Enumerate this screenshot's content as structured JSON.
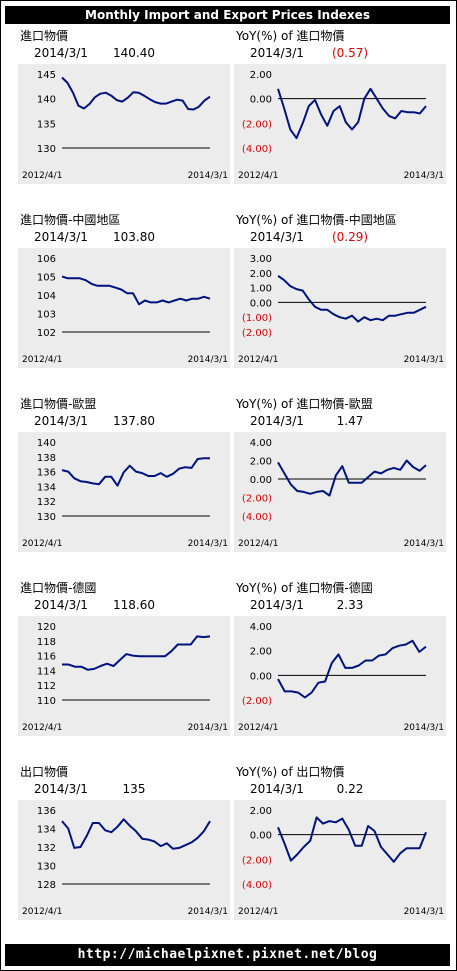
{
  "header": {
    "title": "Monthly Import and Export Prices Indexes"
  },
  "footer": {
    "url": "http://michaelpixnet.pixnet.net/blog"
  },
  "colors": {
    "line": "#00137f",
    "negative": "#e00000",
    "panel": "#ececec"
  },
  "chart_data": [
    {
      "type": "line",
      "title": "進口物價",
      "date": "2014/3/1",
      "value": "140.40",
      "value_negative": false,
      "x_start": "2012/4/1",
      "x_end": "2014/3/1",
      "ylim": [
        130,
        145
      ],
      "yticks": [
        "145",
        "140",
        "135",
        "130"
      ],
      "values": [
        144.3,
        143.2,
        141.2,
        138.6,
        138.0,
        138.9,
        140.3,
        141.0,
        141.2,
        140.6,
        139.7,
        139.4,
        140.2,
        141.3,
        141.2,
        140.6,
        139.9,
        139.3,
        139.0,
        139.0,
        139.4,
        139.8,
        139.6,
        137.9,
        137.8,
        138.4,
        139.6,
        140.4
      ]
    },
    {
      "type": "line",
      "title": "YoY(%) of 進口物價",
      "date": "2014/3/1",
      "value": "(0.57)",
      "value_negative": true,
      "x_start": "2012/4/1",
      "x_end": "2014/3/1",
      "ylim": [
        -4,
        2
      ],
      "yticks": [
        "2.00",
        "0.00",
        "(2.00)",
        "(4.00)"
      ],
      "zero_line": true,
      "values": [
        0.8,
        -0.8,
        -2.5,
        -3.2,
        -2.0,
        -0.6,
        -0.1,
        -1.3,
        -2.2,
        -1.0,
        -0.6,
        -1.9,
        -2.5,
        -1.9,
        0.0,
        0.8,
        0.0,
        -0.8,
        -1.4,
        -1.6,
        -1.0,
        -1.1,
        -1.1,
        -1.2,
        -0.6
      ]
    },
    {
      "type": "line",
      "title": "進口物價-中國地區",
      "date": "2014/3/1",
      "value": "103.80",
      "value_negative": false,
      "x_start": "2012/4/1",
      "x_end": "2014/3/1",
      "ylim": [
        102,
        106
      ],
      "yticks": [
        "106",
        "105",
        "104",
        "103",
        "102"
      ],
      "values": [
        105.0,
        104.9,
        104.9,
        104.9,
        104.8,
        104.6,
        104.5,
        104.5,
        104.5,
        104.4,
        104.3,
        104.1,
        104.1,
        103.5,
        103.7,
        103.6,
        103.6,
        103.7,
        103.6,
        103.7,
        103.8,
        103.7,
        103.8,
        103.8,
        103.9,
        103.8
      ]
    },
    {
      "type": "line",
      "title": "YoY(%) of 進口物價-中國地區",
      "date": "2014/3/1",
      "value": "(0.29)",
      "value_negative": true,
      "x_start": "2012/4/1",
      "x_end": "2014/3/1",
      "ylim": [
        -2,
        3
      ],
      "yticks": [
        "3.00",
        "2.00",
        "1.00",
        "0.00",
        "(1.00)",
        "(2.00)"
      ],
      "zero_line": true,
      "values": [
        1.8,
        1.5,
        1.1,
        0.9,
        0.8,
        0.2,
        -0.3,
        -0.5,
        -0.5,
        -0.8,
        -1.0,
        -1.1,
        -0.9,
        -1.3,
        -1.0,
        -1.2,
        -1.1,
        -1.2,
        -0.9,
        -0.9,
        -0.8,
        -0.7,
        -0.7,
        -0.5,
        -0.3
      ]
    },
    {
      "type": "line",
      "title": "進口物價-歐盟",
      "date": "2014/3/1",
      "value": "137.80",
      "value_negative": false,
      "x_start": "2012/4/1",
      "x_end": "2014/3/1",
      "ylim": [
        130,
        140
      ],
      "yticks": [
        "140",
        "138",
        "136",
        "134",
        "132",
        "130"
      ],
      "values": [
        136.2,
        136.0,
        135.1,
        134.7,
        134.6,
        134.4,
        134.3,
        135.3,
        135.3,
        134.1,
        135.9,
        136.8,
        136.0,
        135.8,
        135.4,
        135.4,
        135.8,
        135.3,
        135.7,
        136.4,
        136.6,
        136.5,
        137.7,
        137.8,
        137.8
      ]
    },
    {
      "type": "line",
      "title": "YoY(%) of 進口物價-歐盟",
      "date": "2014/3/1",
      "value": "1.47",
      "value_negative": false,
      "x_start": "2012/4/1",
      "x_end": "2014/3/1",
      "ylim": [
        -4,
        4
      ],
      "yticks": [
        "4.00",
        "2.00",
        "0.00",
        "(2.00)",
        "(4.00)"
      ],
      "zero_line": true,
      "values": [
        1.8,
        0.6,
        -0.6,
        -1.3,
        -1.4,
        -1.6,
        -1.4,
        -1.3,
        -1.8,
        0.4,
        1.4,
        -0.4,
        -0.4,
        -0.4,
        0.2,
        0.8,
        0.6,
        1.0,
        1.2,
        1.0,
        2.0,
        1.3,
        0.9,
        1.5
      ]
    },
    {
      "type": "line",
      "title": "進口物價-德國",
      "date": "2014/3/1",
      "value": "118.60",
      "value_negative": false,
      "x_start": "2012/4/1",
      "x_end": "2014/3/1",
      "ylim": [
        110,
        120
      ],
      "yticks": [
        "120",
        "118",
        "116",
        "114",
        "112",
        "110"
      ],
      "values": [
        114.8,
        114.8,
        114.5,
        114.5,
        114.1,
        114.2,
        114.6,
        114.9,
        114.6,
        115.4,
        116.2,
        116.0,
        115.9,
        115.9,
        115.9,
        115.9,
        115.9,
        116.6,
        117.5,
        117.5,
        117.5,
        118.6,
        118.5,
        118.6
      ]
    },
    {
      "type": "line",
      "title": "YoY(%) of 進口物價-德國",
      "date": "2014/3/1",
      "value": "2.33",
      "value_negative": false,
      "x_start": "2012/4/1",
      "x_end": "2014/3/1",
      "ylim": [
        -2,
        4
      ],
      "yticks": [
        "4.00",
        "2.00",
        "0.00",
        "(2.00)"
      ],
      "zero_line": true,
      "values": [
        -0.3,
        -1.3,
        -1.3,
        -1.4,
        -1.8,
        -1.4,
        -0.6,
        -0.5,
        1.0,
        1.7,
        0.6,
        0.6,
        0.8,
        1.2,
        1.2,
        1.6,
        1.7,
        2.2,
        2.4,
        2.5,
        2.8,
        1.9,
        2.33
      ]
    },
    {
      "type": "line",
      "title": "出口物價",
      "date": "2014/3/1",
      "value": "135",
      "value_negative": false,
      "x_start": "2012/4/1",
      "x_end": "2014/3/1",
      "ylim": [
        128,
        136
      ],
      "yticks": [
        "136",
        "134",
        "132",
        "130",
        "128"
      ],
      "values": [
        134.8,
        134.0,
        131.9,
        132.0,
        133.2,
        134.6,
        134.6,
        133.8,
        133.6,
        134.2,
        135.0,
        134.3,
        133.7,
        132.9,
        132.8,
        132.6,
        132.1,
        132.4,
        131.8,
        131.9,
        132.2,
        132.5,
        133.0,
        133.7,
        134.8
      ]
    },
    {
      "type": "line",
      "title": "YoY(%) of 出口物價",
      "date": "2014/3/1",
      "value": "0.22",
      "value_negative": false,
      "x_start": "2012/4/1",
      "x_end": "2014/3/1",
      "ylim": [
        -4,
        2
      ],
      "yticks": [
        "2.00",
        "0.00",
        "(2.00)",
        "(4.00)"
      ],
      "zero_line": true,
      "values": [
        0.6,
        -0.7,
        -2.1,
        -1.6,
        -1.0,
        -0.5,
        1.4,
        0.9,
        1.1,
        1.0,
        1.3,
        0.4,
        -0.9,
        -0.9,
        0.7,
        0.3,
        -1.0,
        -1.6,
        -2.2,
        -1.5,
        -1.1,
        -1.1,
        -1.1,
        0.2
      ]
    }
  ]
}
